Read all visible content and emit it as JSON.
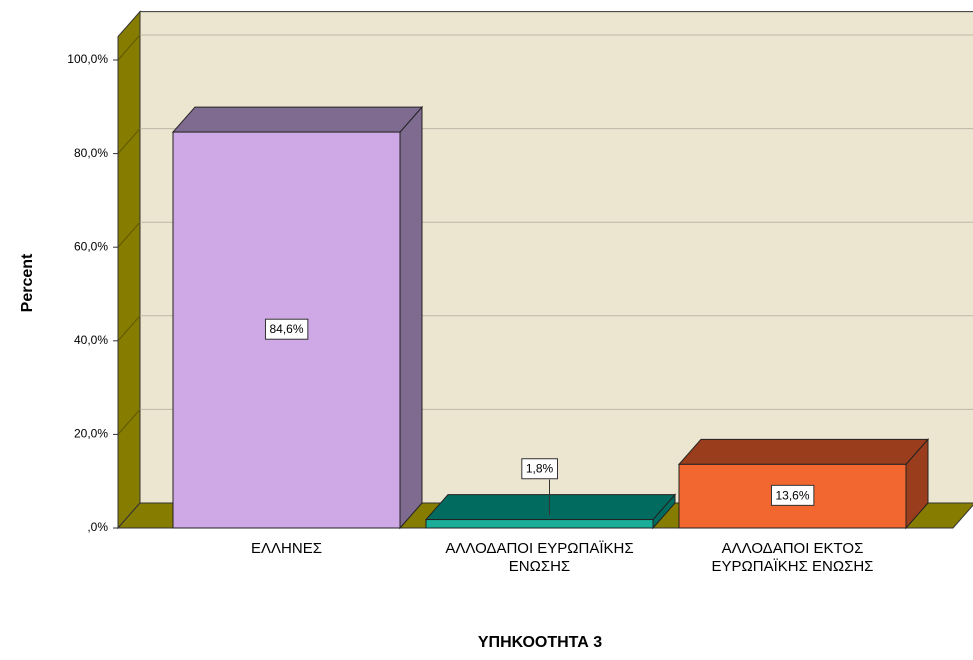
{
  "chart_data": {
    "type": "bar3d",
    "x_label": "ΥΠΗΚΟΟΤΗΤΑ 3",
    "y_label": "Percent",
    "categories": [
      "ΕΛΛΗΝΕΣ",
      "ΑΛΛΟΔΑΠΟΙ ΕΥΡΩΠΑΪΚΗΣ ΕΝΩΣΗΣ",
      "ΑΛΛΟΔΑΠΟΙ ΕΚΤΟΣ ΕΥΡΩΠΑΪΚΗΣ ΕΝΩΣΗΣ"
    ],
    "values": [
      84.6,
      1.8,
      13.6
    ],
    "value_labels": [
      "84,6%",
      "1,8%",
      "13,6%"
    ],
    "colors": [
      "#cfa8e6",
      "#1aae98",
      "#f26630"
    ],
    "top_colors": [
      "#7f6b8f",
      "#006b5e",
      "#9a3d1c"
    ],
    "ylim": [
      0,
      105
    ],
    "yticks": [
      {
        "value": 0,
        "label": ",0%"
      },
      {
        "value": 20,
        "label": "20,0%"
      },
      {
        "value": 40,
        "label": "40,0%"
      },
      {
        "value": 60,
        "label": "60,0%"
      },
      {
        "value": 80,
        "label": "80,0%"
      },
      {
        "value": 100,
        "label": "100,0%"
      }
    ],
    "grid": true
  }
}
